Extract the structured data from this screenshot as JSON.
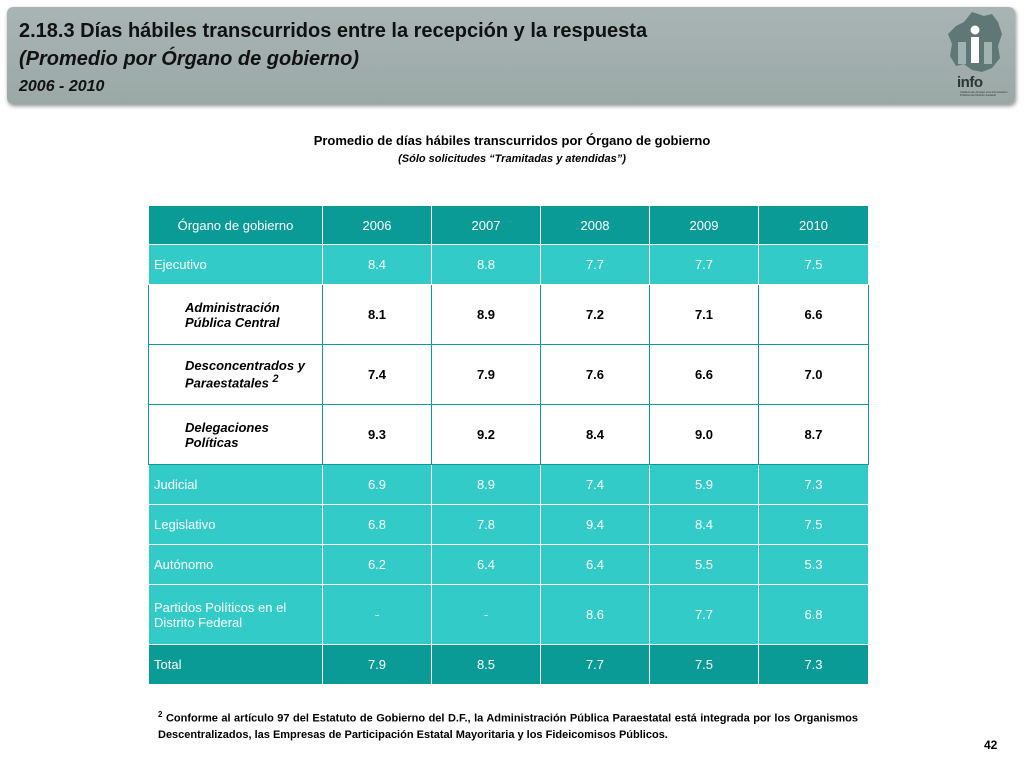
{
  "header": {
    "title": "2.18.3 Días hábiles transcurridos entre la recepción y la respuesta",
    "subtitle": "(Promedio por Órgano de gobierno)",
    "period": "2006 - 2010",
    "logo_text": "info",
    "logo_subtext": "Instituto de Acceso a la Información Pública del Distrito Federal"
  },
  "table_title": "Promedio de días hábiles transcurridos por Órgano de gobierno",
  "table_note": "(Sólo solicitudes “Tramitadas y atendidas”)",
  "table": {
    "headers": [
      "Órgano de gobierno",
      "2006",
      "2007",
      "2008",
      "2009",
      "2010"
    ],
    "rows": [
      {
        "label": "Ejecutivo",
        "values": [
          "8.4",
          "8.8",
          "7.7",
          "7.7",
          "7.5"
        ]
      },
      {
        "label": "Administración Pública Central",
        "values": [
          "8.1",
          "8.9",
          "7.2",
          "7.1",
          "6.6"
        ]
      },
      {
        "label": "Desconcentrados y Paraestatales",
        "sup": "2",
        "values": [
          "7.4",
          "7.9",
          "7.6",
          "6.6",
          "7.0"
        ]
      },
      {
        "label": "Delegaciones Políticas",
        "values": [
          "9.3",
          "9.2",
          "8.4",
          "9.0",
          "8.7"
        ]
      },
      {
        "label": "Judicial",
        "values": [
          "6.9",
          "8.9",
          "7.4",
          "5.9",
          "7.3"
        ]
      },
      {
        "label": "Legislativo",
        "values": [
          "6.8",
          "7.8",
          "9.4",
          "8.4",
          "7.5"
        ]
      },
      {
        "label": "Autónomo",
        "values": [
          "6.2",
          "6.4",
          "6.4",
          "5.5",
          "5.3"
        ]
      },
      {
        "label": "Partidos Políticos en  el Distrito Federal",
        "values": [
          "-",
          "-",
          "8.6",
          "7.7",
          "6.8"
        ]
      },
      {
        "label": "Total",
        "values": [
          "7.9",
          "8.5",
          "7.7",
          "7.5",
          "7.3"
        ]
      }
    ]
  },
  "footnote": {
    "marker": "2",
    "text": "Conforme al artículo 97 del Estatuto de Gobierno del D.F., la Administración Pública Paraestatal está integrada por los Organismos Descentralizados, las Empresas de Participación Estatal Mayoritaria y los Fideicomisos Públicos."
  },
  "page_number": "42",
  "colors": {
    "header_teal": "#0a9b96",
    "row_cyan": "#33cbc8",
    "banner_gray": "#a9b5b4"
  }
}
